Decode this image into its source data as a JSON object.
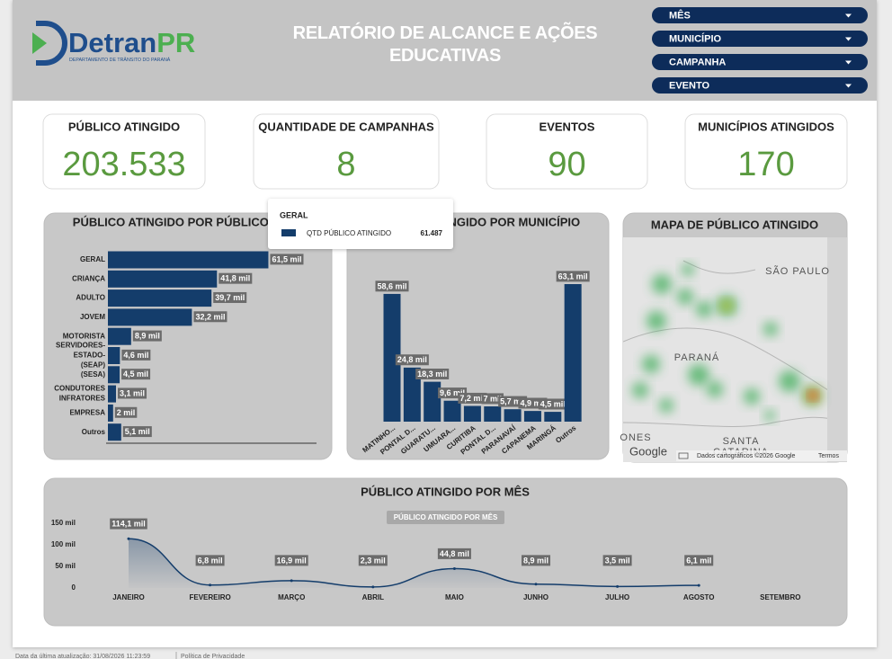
{
  "header": {
    "logo_text": "Detran",
    "logo_accent": "PR",
    "logo_subtitle": "DEPARTAMENTO DE TRÂNSITO DO PARANÁ",
    "title": "RELATÓRIO DE ALCANCE E AÇÕES EDUCATIVAS"
  },
  "filters": [
    "MÊS",
    "MUNICÍPIO",
    "CAMPANHA",
    "EVENTO"
  ],
  "kpis": [
    {
      "label": "PÚBLICO ATINGIDO",
      "value": "203.533"
    },
    {
      "label": "QUANTIDADE DE CAMPANHAS",
      "value": "8"
    },
    {
      "label": "EVENTOS",
      "value": "90"
    },
    {
      "label": "MUNICÍPIOS ATINGIDOS",
      "value": "170"
    }
  ],
  "tooltip": {
    "title": "GERAL",
    "series": "QTD PÚBLICO ATINGIDO",
    "value": "61.487"
  },
  "map": {
    "title": "MAPA DE PÚBLICO ATINGIDO",
    "labels": [
      "SÃO PAULO",
      "PARANÁ",
      "SANTA",
      "CATARINA",
      "ONES"
    ],
    "google": "Google",
    "attribution": "Dados cartográficos ©2026 Google",
    "terms": "Termos"
  },
  "chart_data": [
    {
      "type": "hbar",
      "title": "PÚBLICO ATINGIDO POR PÚBLICO ALVO",
      "categories": [
        "GERAL",
        "CRIANÇA",
        "ADULTO",
        "JOVEM",
        "MOTORISTA",
        "SERVIDORES-ESTADO-(SEAP)",
        "(SESA)",
        "CONDUTORES INFRATORES",
        "EMPRESA",
        "Outros"
      ],
      "values": [
        61.5,
        41.8,
        39.7,
        32.2,
        8.9,
        4.6,
        4.5,
        3.1,
        2,
        5.1
      ],
      "value_labels": [
        "61,5 mil",
        "41,8 mil",
        "39,7 mil",
        "32,2 mil",
        "8,9 mil",
        "4,6 mil",
        "4,5 mil",
        "3,1 mil",
        "2 mil",
        "5,1 mil"
      ],
      "color": "#143d6b"
    },
    {
      "type": "bar",
      "title": "PÚBLICO ATINGIDO POR MUNICÍPIO",
      "categories": [
        "MATINHO...",
        "PONTAL D...",
        "GUARATU...",
        "UMUARA...",
        "CURITIBA",
        "PONTAL D...",
        "PARANAVAÍ",
        "CAPANEMA",
        "MARINGÁ",
        "Outros"
      ],
      "values": [
        58.6,
        24.8,
        18.3,
        9.6,
        7.2,
        7,
        5.7,
        4.9,
        4.5,
        63.1
      ],
      "value_labels": [
        "58,6 mil",
        "24,8 mil",
        "18,3 mil",
        "9,6 mil",
        "7,2 mil",
        "7 mil",
        "5,7 mil",
        "4,9 mil",
        "4,5 mil",
        "63,1 mil"
      ],
      "color": "#143d6b"
    },
    {
      "type": "line",
      "title": "PÚBLICO ATINGIDO POR MÊS",
      "categories": [
        "JANEIRO",
        "FEVEREIRO",
        "MARÇO",
        "ABRIL",
        "MAIO",
        "JUNHO",
        "JULHO",
        "AGOSTO",
        "SETEMBRO"
      ],
      "series": [
        {
          "name": "PÚBLICO ATINGIDO POR MÊS",
          "color": "#143d6b",
          "values": [
            114.1,
            6.8,
            16.9,
            2.3,
            44.8,
            8.9,
            3.5,
            6.1,
            null
          ],
          "value_labels": [
            "114,1 mil",
            "6,8 mil",
            "16,9 mil",
            "2,3 mil",
            "44,8 mil",
            "8,9 mil",
            "3,5 mil",
            "6,1 mil",
            null
          ]
        }
      ],
      "ylim": [
        0,
        150
      ],
      "yticks": [
        0,
        {
          "value": 50,
          "label": "50 mil"
        },
        {
          "value": 100,
          "label": "100 mil"
        },
        {
          "value": 150,
          "label": "150 mil"
        }
      ]
    }
  ],
  "footer": {
    "updated": "Data da última atualização: 31/08/2026 11:23:59",
    "privacy": "Política de Privacidade"
  }
}
